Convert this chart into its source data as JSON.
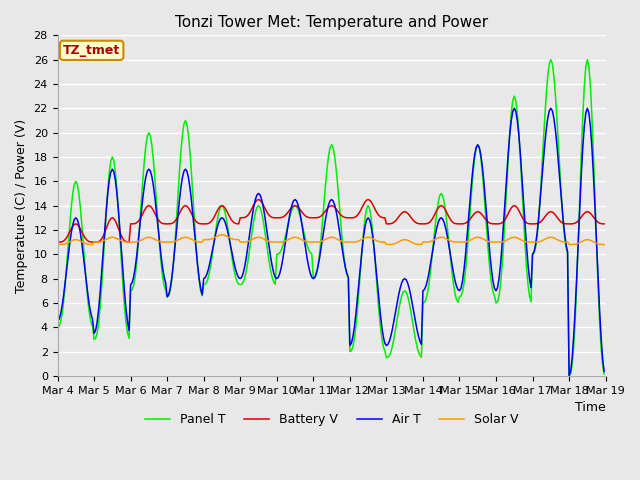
{
  "title": "Tonzi Tower Met: Temperature and Power",
  "xlabel": "Time",
  "ylabel": "Temperature (C) / Power (V)",
  "ylim": [
    0,
    28
  ],
  "yticks": [
    0,
    2,
    4,
    6,
    8,
    10,
    12,
    14,
    16,
    18,
    20,
    22,
    24,
    26,
    28
  ],
  "xtick_labels": [
    "Mar 4",
    "Mar 5",
    "Mar 6",
    "Mar 7",
    "Mar 8",
    "Mar 9",
    "Mar 10",
    "Mar 11",
    "Mar 12",
    "Mar 13",
    "Mar 14",
    "Mar 15",
    "Mar 16",
    "Mar 17",
    "Mar 18",
    "Mar 19"
  ],
  "legend_labels": [
    "Panel T",
    "Battery V",
    "Air T",
    "Solar V"
  ],
  "legend_colors": [
    "#00ee00",
    "#dd0000",
    "#0000ee",
    "#ff9900"
  ],
  "fig_bg_color": "#e8e8e8",
  "plot_bg_color": "#e8e8e8",
  "grid_color": "#ffffff",
  "annotation_text": "TZ_tmet",
  "annotation_color": "#aa0000",
  "annotation_bg": "#ffffcc",
  "annotation_border": "#cc8800",
  "title_fontsize": 11,
  "axis_fontsize": 9,
  "tick_fontsize": 8
}
